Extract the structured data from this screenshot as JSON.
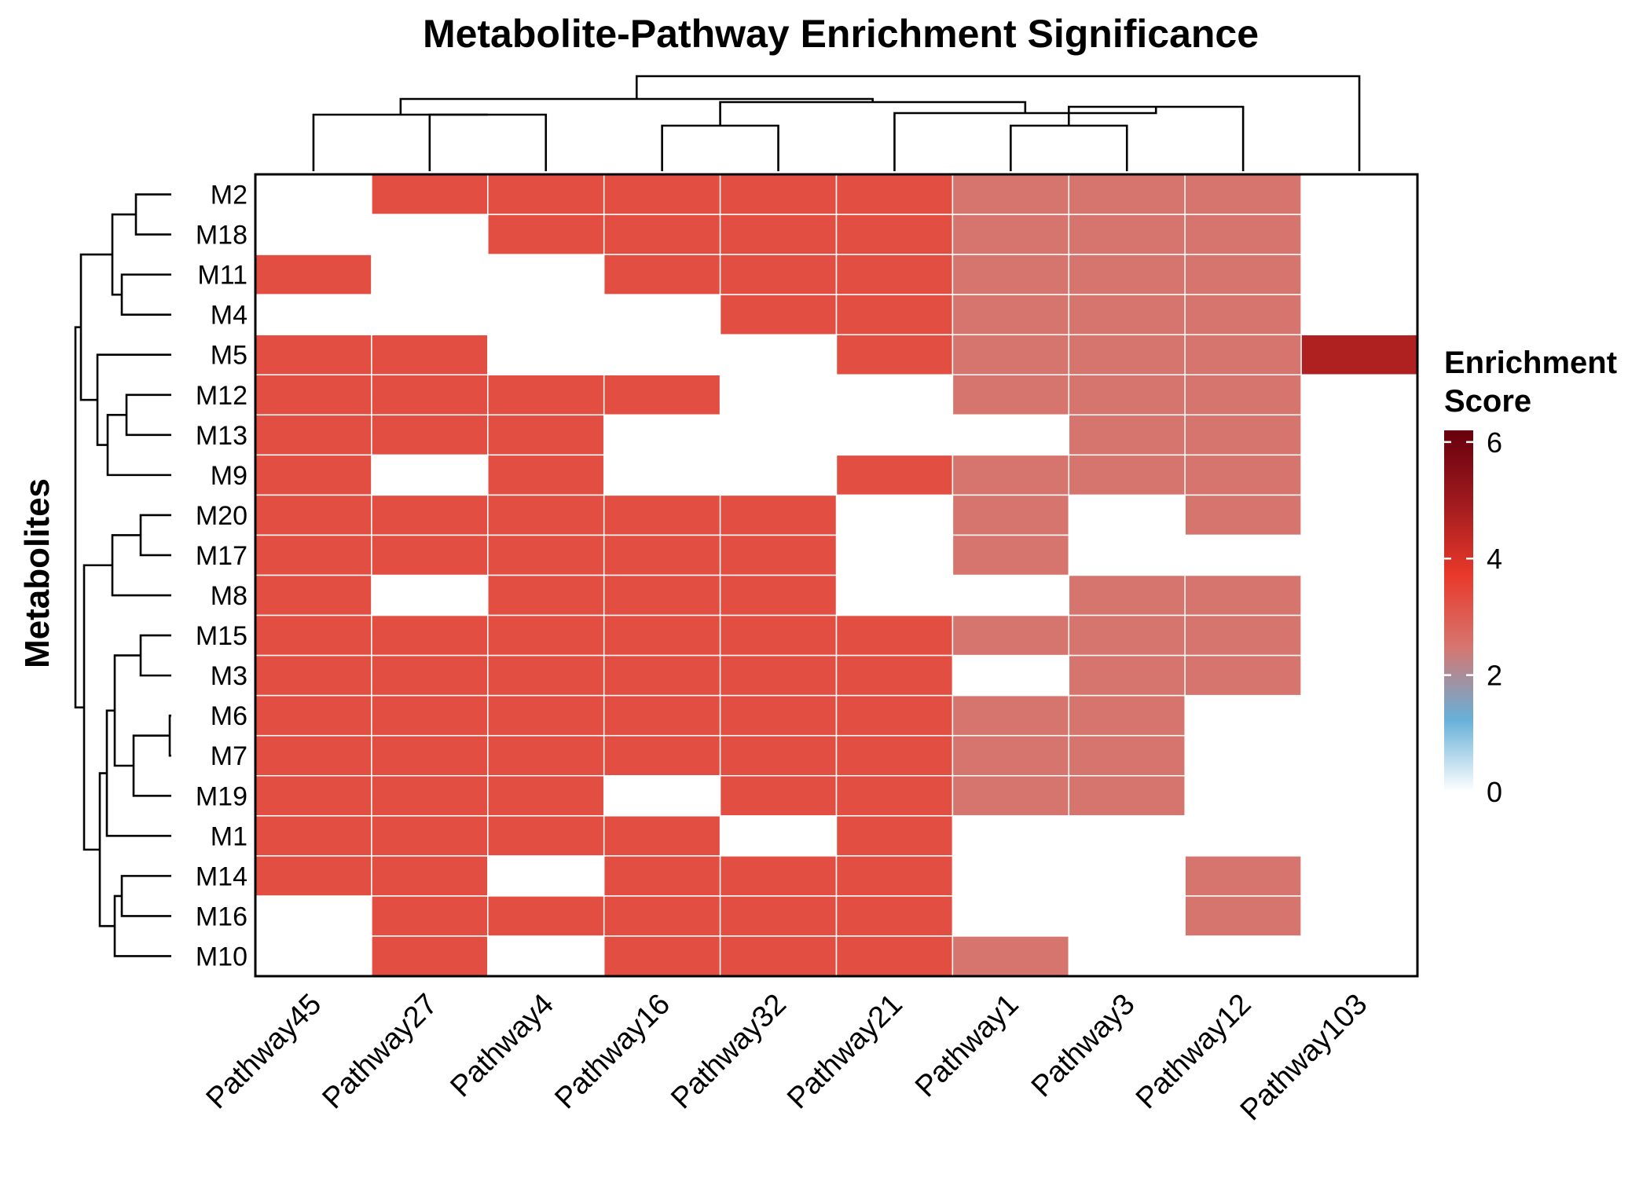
{
  "chart_data": {
    "type": "heatmap",
    "title": "Metabolite-Pathway Enrichment Significance",
    "ylabel": "Metabolites",
    "xlabel": "",
    "rows": [
      "M2",
      "M18",
      "M11",
      "M4",
      "M5",
      "M12",
      "M13",
      "M9",
      "M20",
      "M17",
      "M8",
      "M15",
      "M3",
      "M6",
      "M7",
      "M19",
      "M1",
      "M14",
      "M16",
      "M10"
    ],
    "columns": [
      "Pathway45",
      "Pathway27",
      "Pathway4",
      "Pathway16",
      "Pathway32",
      "Pathway21",
      "Pathway1",
      "Pathway3",
      "Pathway12",
      "Pathway103"
    ],
    "values": [
      [
        0,
        3.3,
        3.3,
        3.3,
        3.3,
        3.3,
        2.5,
        2.5,
        2.5,
        0
      ],
      [
        0,
        0,
        3.3,
        3.3,
        3.3,
        3.3,
        2.5,
        2.5,
        2.5,
        0
      ],
      [
        3.3,
        0,
        0,
        3.3,
        3.3,
        3.3,
        2.5,
        2.5,
        2.5,
        0
      ],
      [
        0,
        0,
        0,
        0,
        3.3,
        3.3,
        2.5,
        2.5,
        2.5,
        0
      ],
      [
        3.3,
        3.3,
        0,
        0,
        0,
        3.3,
        2.5,
        2.5,
        2.5,
        4.7
      ],
      [
        3.3,
        3.3,
        3.3,
        3.3,
        0,
        0,
        2.5,
        2.5,
        2.5,
        0
      ],
      [
        3.3,
        3.3,
        3.3,
        0,
        0,
        0,
        0,
        2.5,
        2.5,
        0
      ],
      [
        3.3,
        0,
        3.3,
        0,
        0,
        3.3,
        2.5,
        2.5,
        2.5,
        0
      ],
      [
        3.3,
        3.3,
        3.3,
        3.3,
        3.3,
        0,
        2.5,
        0,
        2.5,
        0
      ],
      [
        3.3,
        3.3,
        3.3,
        3.3,
        3.3,
        0,
        2.5,
        0,
        0,
        0
      ],
      [
        3.3,
        0,
        3.3,
        3.3,
        3.3,
        0,
        0,
        2.5,
        2.5,
        0
      ],
      [
        3.3,
        3.3,
        3.3,
        3.3,
        3.3,
        3.3,
        2.5,
        2.5,
        2.5,
        0
      ],
      [
        3.3,
        3.3,
        3.3,
        3.3,
        3.3,
        3.3,
        0,
        2.5,
        2.5,
        0
      ],
      [
        3.3,
        3.3,
        3.3,
        3.3,
        3.3,
        3.3,
        2.5,
        2.5,
        0,
        0
      ],
      [
        3.3,
        3.3,
        3.3,
        3.3,
        3.3,
        3.3,
        2.5,
        2.5,
        0,
        0
      ],
      [
        3.3,
        3.3,
        3.3,
        0,
        3.3,
        3.3,
        2.5,
        2.5,
        0,
        0
      ],
      [
        3.3,
        3.3,
        3.3,
        3.3,
        0,
        3.3,
        0,
        0,
        0,
        0
      ],
      [
        3.3,
        3.3,
        0,
        3.3,
        3.3,
        3.3,
        0,
        0,
        2.5,
        0
      ],
      [
        0,
        3.3,
        3.3,
        3.3,
        3.3,
        3.3,
        0,
        0,
        2.5,
        0
      ],
      [
        0,
        3.3,
        0,
        3.3,
        3.3,
        3.3,
        2.5,
        0,
        0,
        0
      ]
    ],
    "legend": {
      "title_line1": "Enrichment",
      "title_line2": "Score",
      "ticks": [
        "0",
        "2",
        "4",
        "6"
      ],
      "range": [
        0,
        6.2
      ],
      "colors": [
        "#ffffff",
        "#67b0d8",
        "#d6766f",
        "#e8392b",
        "#a01a1e",
        "#67000d"
      ]
    },
    "row_dendrogram": true,
    "column_dendrogram": true,
    "grid": false,
    "legend_position": "right"
  }
}
